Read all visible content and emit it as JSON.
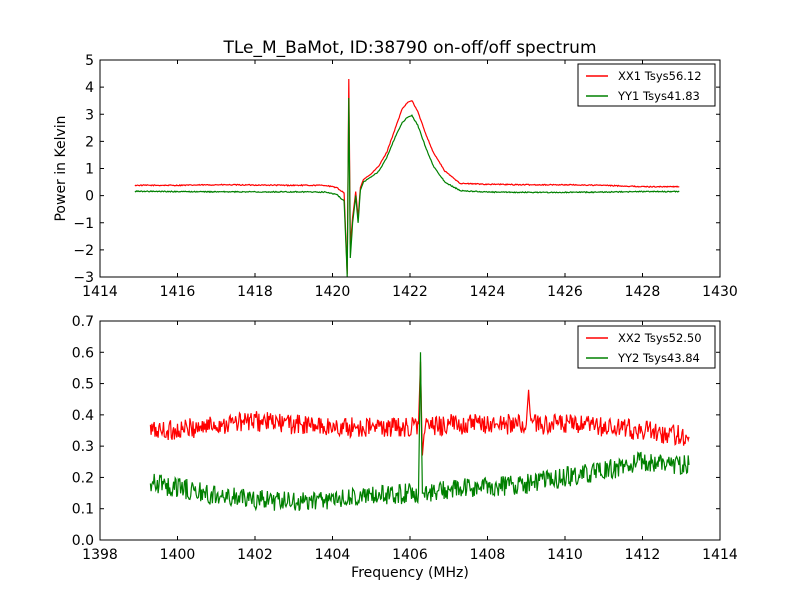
{
  "figure": {
    "title": "TLe_M_BaMot, ID:38790 on-off/off spectrum",
    "xlabel": "Frequency (MHz)"
  },
  "chart_data": [
    {
      "type": "line",
      "title": "TLe_M_BaMot, ID:38790 on-off/off spectrum",
      "xlabel": "",
      "ylabel": "Power in Kelvin",
      "xlim": [
        1414,
        1430
      ],
      "ylim": [
        -3,
        5
      ],
      "xticks": [
        1414,
        1416,
        1418,
        1420,
        1422,
        1424,
        1426,
        1428,
        1430
      ],
      "yticks": [
        -3,
        -2,
        -1,
        0,
        1,
        2,
        3,
        4,
        5
      ],
      "legend_position": "top-right",
      "grid": false,
      "series": [
        {
          "name": "XX1 Tsys56.12",
          "color": "#ff0000",
          "x": [
            1414.9,
            1416.0,
            1417.0,
            1418.0,
            1419.0,
            1419.8,
            1420.1,
            1420.3,
            1420.38,
            1420.42,
            1420.46,
            1420.52,
            1420.6,
            1420.66,
            1420.72,
            1420.8,
            1420.9,
            1421.0,
            1421.2,
            1421.4,
            1421.6,
            1421.8,
            1421.95,
            1422.05,
            1422.2,
            1422.4,
            1422.6,
            1422.9,
            1423.3,
            1424.0,
            1425.0,
            1426.0,
            1427.0,
            1428.0,
            1428.95
          ],
          "y": [
            0.38,
            0.38,
            0.4,
            0.39,
            0.38,
            0.38,
            0.3,
            0.1,
            -2.9,
            4.3,
            -1.8,
            -0.8,
            0.15,
            -0.8,
            0.3,
            0.6,
            0.7,
            0.8,
            1.1,
            1.6,
            2.4,
            3.2,
            3.45,
            3.5,
            3.1,
            2.3,
            1.6,
            0.9,
            0.45,
            0.42,
            0.4,
            0.4,
            0.38,
            0.33,
            0.33
          ]
        },
        {
          "name": "YY1 Tsys41.83",
          "color": "#008000",
          "x": [
            1414.9,
            1416.0,
            1417.0,
            1418.0,
            1419.0,
            1419.8,
            1420.1,
            1420.3,
            1420.38,
            1420.42,
            1420.46,
            1420.52,
            1420.6,
            1420.66,
            1420.72,
            1420.8,
            1420.9,
            1421.0,
            1421.2,
            1421.4,
            1421.6,
            1421.8,
            1421.95,
            1422.05,
            1422.2,
            1422.4,
            1422.6,
            1422.9,
            1423.3,
            1424.0,
            1425.0,
            1426.0,
            1427.0,
            1428.0,
            1428.95
          ],
          "y": [
            0.16,
            0.15,
            0.14,
            0.14,
            0.14,
            0.13,
            0.05,
            -0.2,
            -3.0,
            3.6,
            -2.3,
            -1.0,
            0.0,
            -1.0,
            0.2,
            0.5,
            0.6,
            0.7,
            0.9,
            1.4,
            2.1,
            2.7,
            2.9,
            2.95,
            2.6,
            1.8,
            1.1,
            0.5,
            0.18,
            0.13,
            0.12,
            0.12,
            0.13,
            0.15,
            0.15
          ]
        }
      ]
    },
    {
      "type": "line",
      "title": "",
      "xlabel": "Frequency (MHz)",
      "ylabel": "",
      "xlim": [
        1398,
        1414
      ],
      "ylim": [
        0.0,
        0.7
      ],
      "xticks": [
        1398,
        1400,
        1402,
        1404,
        1406,
        1408,
        1410,
        1412,
        1414
      ],
      "yticks": [
        0.0,
        0.1,
        0.2,
        0.3,
        0.4,
        0.5,
        0.6,
        0.7
      ],
      "legend_position": "top-right",
      "grid": false,
      "series": [
        {
          "name": "XX2 Tsys52.50",
          "color": "#ff0000",
          "x": [
            1399.3,
            1400.0,
            1401.0,
            1402.0,
            1403.0,
            1404.0,
            1405.0,
            1406.0,
            1406.22,
            1406.27,
            1406.32,
            1406.38,
            1406.5,
            1407.0,
            1408.0,
            1409.0,
            1409.06,
            1409.12,
            1410.0,
            1411.0,
            1412.0,
            1413.2
          ],
          "y": [
            0.35,
            0.35,
            0.37,
            0.38,
            0.37,
            0.36,
            0.36,
            0.36,
            0.37,
            0.57,
            0.27,
            0.37,
            0.36,
            0.37,
            0.37,
            0.37,
            0.48,
            0.37,
            0.37,
            0.36,
            0.35,
            0.33
          ]
        },
        {
          "name": "YY2 Tsys43.84",
          "color": "#008000",
          "x": [
            1399.3,
            1400.0,
            1401.0,
            1402.0,
            1403.0,
            1404.0,
            1405.0,
            1406.0,
            1406.22,
            1406.27,
            1406.32,
            1406.38,
            1406.5,
            1407.0,
            1408.0,
            1409.0,
            1410.0,
            1411.0,
            1412.0,
            1413.2
          ],
          "y": [
            0.18,
            0.17,
            0.14,
            0.13,
            0.12,
            0.13,
            0.14,
            0.15,
            0.15,
            0.6,
            0.15,
            0.15,
            0.15,
            0.16,
            0.17,
            0.18,
            0.2,
            0.22,
            0.25,
            0.24
          ]
        }
      ]
    }
  ]
}
